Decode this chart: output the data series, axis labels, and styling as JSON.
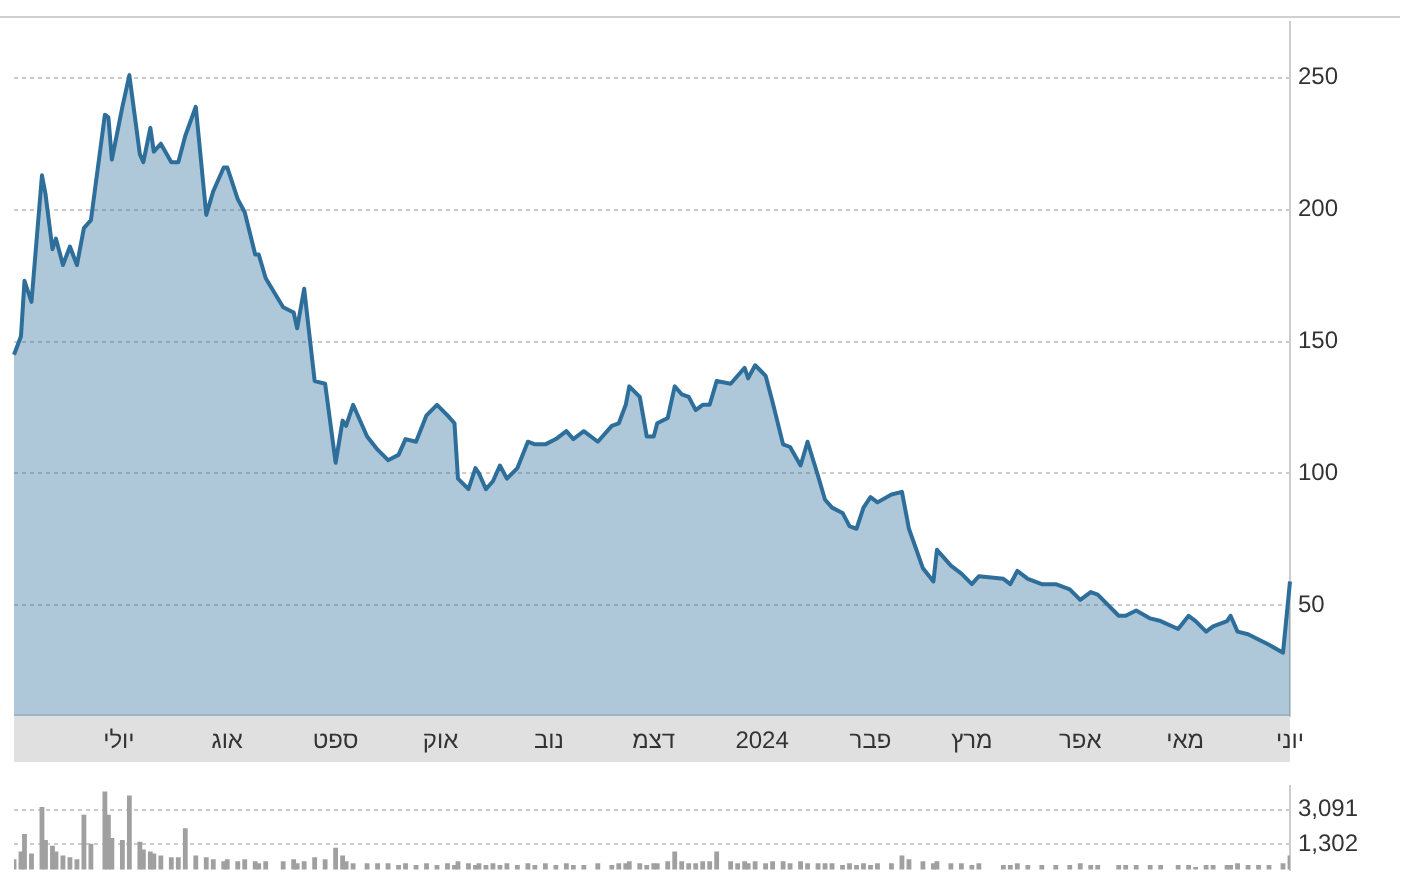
{
  "chart_data": [
    {
      "type": "area",
      "legend": false,
      "marker": "none",
      "grid": "y",
      "categories": [
        null,
        null,
        null,
        null,
        null,
        null,
        null,
        null,
        null,
        null,
        null,
        null,
        null,
        null,
        null,
        null,
        null,
        null,
        null,
        null,
        null,
        null,
        null,
        null,
        null,
        null,
        null,
        null,
        null,
        null,
        "יולי",
        null,
        null,
        null,
        null,
        null,
        null,
        null,
        null,
        null,
        null,
        null,
        null,
        null,
        null,
        null,
        null,
        null,
        null,
        null,
        null,
        null,
        null,
        null,
        null,
        null,
        null,
        null,
        null,
        null,
        null,
        "אוג",
        null,
        null,
        null,
        null,
        null,
        null,
        null,
        null,
        null,
        null,
        null,
        null,
        null,
        null,
        null,
        null,
        null,
        null,
        null,
        null,
        null,
        null,
        null,
        null,
        null,
        null,
        null,
        null,
        null,
        null,
        "ספט",
        null,
        null,
        null,
        null,
        null,
        null,
        null,
        null,
        null,
        null,
        null,
        null,
        null,
        null,
        null,
        null,
        null,
        null,
        null,
        null,
        null,
        null,
        null,
        null,
        null,
        null,
        null,
        null,
        null,
        "אוק",
        null,
        null,
        null,
        null,
        null,
        null,
        null,
        null,
        null,
        null,
        null,
        null,
        null,
        null,
        null,
        null,
        null,
        null,
        null,
        null,
        null,
        null,
        null,
        null,
        null,
        null,
        null,
        null,
        null,
        null,
        "נוב",
        null,
        null,
        null,
        null,
        null,
        null,
        null,
        null,
        null,
        null,
        null,
        null,
        null,
        null,
        null,
        null,
        null,
        null,
        null,
        null,
        null,
        null,
        null,
        null,
        null,
        null,
        null,
        null,
        null,
        "דצמ",
        null,
        null,
        null,
        null,
        null,
        null,
        null,
        null,
        null,
        null,
        null,
        null,
        null,
        null,
        null,
        null,
        null,
        null,
        null,
        null,
        null,
        null,
        null,
        null,
        null,
        null,
        null,
        null,
        null,
        null,
        "2024",
        null,
        null,
        null,
        null,
        null,
        null,
        null,
        null,
        null,
        null,
        null,
        null,
        null,
        null,
        null,
        null,
        null,
        null,
        null,
        null,
        null,
        null,
        null,
        null,
        null,
        null,
        null,
        null,
        null,
        null,
        "פבר",
        null,
        null,
        null,
        null,
        null,
        null,
        null,
        null,
        null,
        null,
        null,
        null,
        null,
        null,
        null,
        null,
        null,
        null,
        null,
        null,
        null,
        null,
        null,
        null,
        null,
        null,
        null,
        null,
        "מרץ",
        null,
        null,
        null,
        null,
        null,
        null,
        null,
        null,
        null,
        null,
        null,
        null,
        null,
        null,
        null,
        null,
        null,
        null,
        null,
        null,
        null,
        null,
        null,
        null,
        null,
        null,
        null,
        null,
        null,
        null,
        "אפר",
        null,
        null,
        null,
        null,
        null,
        null,
        null,
        null,
        null,
        null,
        null,
        null,
        null,
        null,
        null,
        null,
        null,
        null,
        null,
        null,
        null,
        null,
        null,
        null,
        null,
        null,
        null,
        null,
        null,
        "מאי",
        null,
        null,
        null,
        null,
        null,
        null,
        null,
        null,
        null,
        null,
        null,
        null,
        null,
        null,
        null,
        null,
        null,
        null,
        null,
        null,
        null,
        null,
        null,
        null,
        null,
        null,
        null,
        null,
        null,
        "יוני"
      ],
      "series": [
        {
          "color": "#2e6e9a",
          "values": [
            145,
            null,
            152,
            173,
            null,
            165,
            null,
            null,
            213,
            206,
            null,
            185,
            189,
            null,
            179,
            null,
            186,
            null,
            179,
            null,
            193,
            null,
            196,
            null,
            null,
            null,
            236,
            235,
            219,
            null,
            null,
            239,
            null,
            251,
            null,
            null,
            221,
            218,
            null,
            231,
            222,
            null,
            225,
            null,
            null,
            218,
            null,
            218,
            null,
            228,
            null,
            null,
            239,
            null,
            null,
            198,
            null,
            207,
            null,
            null,
            216,
            216,
            null,
            null,
            204,
            null,
            199,
            null,
            null,
            183,
            183,
            null,
            174,
            null,
            null,
            null,
            null,
            163,
            null,
            null,
            161,
            155,
            null,
            170,
            null,
            null,
            135,
            null,
            null,
            134,
            null,
            null,
            104,
            null,
            120,
            118,
            null,
            126,
            null,
            null,
            null,
            114,
            null,
            null,
            109,
            null,
            null,
            105,
            null,
            null,
            107,
            null,
            113,
            null,
            null,
            112,
            null,
            null,
            122,
            null,
            null,
            126,
            null,
            null,
            122,
            null,
            119,
            98,
            null,
            null,
            94,
            null,
            102,
            100,
            null,
            94,
            null,
            97,
            null,
            103,
            null,
            98,
            null,
            null,
            102,
            null,
            null,
            112,
            null,
            111,
            null,
            null,
            111,
            null,
            null,
            113,
            null,
            null,
            116,
            null,
            113,
            null,
            null,
            116,
            null,
            null,
            null,
            112,
            null,
            null,
            null,
            118,
            null,
            119,
            null,
            126,
            133,
            null,
            null,
            129,
            null,
            114,
            null,
            114,
            119,
            null,
            null,
            121,
            null,
            133,
            null,
            130,
            null,
            129,
            null,
            124,
            null,
            126,
            null,
            126,
            null,
            135,
            null,
            null,
            null,
            134,
            null,
            137,
            null,
            140,
            136,
            null,
            141,
            null,
            null,
            137,
            null,
            127,
            null,
            null,
            111,
            null,
            110,
            null,
            null,
            103,
            null,
            112,
            null,
            null,
            99,
            null,
            90,
            null,
            87,
            null,
            null,
            85,
            null,
            80,
            null,
            79,
            null,
            87,
            null,
            91,
            null,
            89,
            null,
            null,
            null,
            92,
            null,
            null,
            93,
            null,
            79,
            null,
            null,
            null,
            64,
            null,
            null,
            59,
            71,
            null,
            null,
            null,
            65,
            null,
            null,
            62,
            null,
            null,
            58,
            null,
            61,
            null,
            null,
            null,
            null,
            null,
            null,
            60,
            null,
            58,
            null,
            63,
            null,
            null,
            60,
            null,
            null,
            null,
            58,
            null,
            null,
            null,
            58,
            null,
            null,
            null,
            56,
            null,
            null,
            52,
            null,
            null,
            55,
            null,
            54,
            null,
            null,
            null,
            null,
            null,
            46,
            null,
            46,
            null,
            null,
            48,
            null,
            null,
            null,
            45,
            null,
            null,
            44,
            null,
            null,
            null,
            null,
            41,
            null,
            null,
            46,
            null,
            44,
            null,
            null,
            40,
            null,
            42,
            null,
            null,
            null,
            44,
            46,
            null,
            40,
            null,
            null,
            39,
            null,
            null,
            37,
            null,
            null,
            35,
            null,
            null,
            null,
            32,
            null,
            59
          ]
        }
      ],
      "ylim": [
        8,
        271
      ],
      "yticks": [
        50,
        100,
        150,
        200,
        250
      ]
    },
    {
      "type": "bar",
      "legend": false,
      "grid": "y",
      "tick_labels": "y",
      "categories": [
        null,
        null,
        null,
        null,
        null,
        null,
        null,
        null,
        null,
        null,
        null,
        null,
        null,
        null,
        null,
        null,
        null,
        null,
        null,
        null,
        null,
        null,
        null,
        null,
        null,
        null,
        null,
        null,
        null,
        null,
        null,
        null,
        null,
        null,
        null,
        null,
        null,
        null,
        null,
        null,
        null,
        null,
        null,
        null,
        null,
        null,
        null,
        null,
        null,
        null,
        null,
        null,
        null,
        null,
        null,
        null,
        null,
        null,
        null,
        null,
        null,
        null,
        null,
        null,
        null,
        null,
        null,
        null,
        null,
        null,
        null,
        null,
        null,
        null,
        null,
        null,
        null,
        null,
        null,
        null,
        null,
        null,
        null,
        null,
        null,
        null,
        null,
        null,
        null,
        null,
        null,
        null,
        null,
        null,
        null,
        null,
        null,
        null,
        null,
        null,
        null,
        null,
        null,
        null,
        null,
        null,
        null,
        null,
        null,
        null,
        null,
        null,
        null,
        null,
        null,
        null,
        null,
        null,
        null,
        null,
        null,
        null,
        null,
        null,
        null,
        null,
        null,
        null,
        null,
        null,
        null,
        null,
        null,
        null,
        null,
        null,
        null,
        null,
        null,
        null,
        null,
        null,
        null,
        null,
        null,
        null,
        null,
        null,
        null,
        null,
        null,
        null,
        null,
        null,
        null,
        null,
        null,
        null,
        null,
        null,
        null,
        null,
        null,
        null,
        null,
        null,
        null,
        null,
        null,
        null,
        null,
        null,
        null,
        null,
        null,
        null,
        null,
        null,
        null,
        null,
        null,
        null,
        null,
        null,
        null,
        null,
        null,
        null,
        null,
        null,
        null,
        null,
        null,
        null,
        null,
        null,
        null,
        null,
        null,
        null,
        null,
        null,
        null,
        null,
        null,
        null,
        null,
        null,
        null,
        null,
        null,
        null,
        null,
        null,
        null,
        null,
        null,
        null,
        null,
        null,
        null,
        null,
        null,
        null,
        null,
        null,
        null,
        null,
        null,
        null,
        null,
        null,
        null,
        null,
        null,
        null,
        null,
        null,
        null,
        null,
        null,
        null,
        null,
        null,
        null,
        null,
        null,
        null,
        null,
        null,
        null,
        null,
        null,
        null,
        null,
        null,
        null,
        null,
        null,
        null,
        null,
        null,
        null,
        null,
        null,
        null,
        null,
        null,
        null,
        null,
        null,
        null,
        null,
        null,
        null,
        null,
        null,
        null,
        null,
        null,
        null,
        null,
        null,
        null,
        null,
        null,
        null,
        null,
        null,
        null,
        null,
        null,
        null,
        null,
        null,
        null,
        null,
        null,
        null,
        null,
        null,
        null,
        null,
        null,
        null,
        null,
        null,
        null,
        null,
        null,
        null,
        null,
        null,
        null,
        null,
        null,
        null,
        null,
        null,
        null,
        null,
        null,
        null,
        null,
        null,
        null,
        null,
        null,
        null,
        null,
        null,
        null,
        null,
        null,
        null,
        null,
        null,
        null,
        null,
        null,
        null,
        null,
        null,
        null,
        null,
        null,
        null,
        null,
        null,
        null,
        null,
        null,
        null,
        null,
        null,
        null,
        null,
        null,
        null,
        null,
        null,
        null,
        null,
        null,
        null,
        null
      ],
      "series": [
        {
          "color": "#a0a0a0",
          "values": [
            500,
            null,
            900,
            1800,
            null,
            800,
            null,
            null,
            3200,
            1500,
            null,
            1200,
            900,
            null,
            700,
            null,
            600,
            null,
            500,
            null,
            2800,
            null,
            1300,
            null,
            null,
            null,
            4000,
            2800,
            1600,
            null,
            null,
            1500,
            null,
            3800,
            null,
            null,
            1400,
            1000,
            null,
            900,
            800,
            null,
            700,
            null,
            null,
            600,
            null,
            600,
            null,
            2100,
            null,
            null,
            700,
            null,
            null,
            600,
            null,
            500,
            null,
            null,
            400,
            500,
            null,
            null,
            400,
            null,
            500,
            null,
            null,
            400,
            300,
            null,
            400,
            null,
            null,
            null,
            null,
            400,
            null,
            null,
            500,
            300,
            null,
            400,
            null,
            null,
            600,
            null,
            null,
            500,
            null,
            null,
            1100,
            null,
            700,
            400,
            null,
            300,
            null,
            null,
            null,
            300,
            null,
            null,
            300,
            null,
            null,
            300,
            null,
            null,
            200,
            null,
            300,
            null,
            null,
            200,
            null,
            null,
            300,
            null,
            null,
            200,
            null,
            null,
            300,
            null,
            200,
            400,
            null,
            null,
            300,
            null,
            200,
            300,
            null,
            200,
            null,
            300,
            null,
            200,
            null,
            300,
            null,
            null,
            200,
            null,
            null,
            300,
            null,
            200,
            null,
            null,
            300,
            null,
            null,
            200,
            null,
            null,
            300,
            null,
            200,
            null,
            null,
            200,
            null,
            null,
            null,
            300,
            null,
            null,
            null,
            200,
            null,
            300,
            null,
            300,
            400,
            null,
            null,
            300,
            null,
            200,
            null,
            300,
            300,
            null,
            null,
            400,
            null,
            900,
            null,
            400,
            null,
            300,
            null,
            300,
            null,
            400,
            null,
            400,
            null,
            900,
            null,
            null,
            null,
            400,
            null,
            300,
            null,
            400,
            300,
            null,
            400,
            null,
            null,
            300,
            null,
            400,
            null,
            null,
            400,
            null,
            300,
            null,
            null,
            400,
            null,
            300,
            null,
            null,
            300,
            null,
            300,
            null,
            300,
            null,
            null,
            200,
            null,
            300,
            null,
            200,
            null,
            300,
            null,
            200,
            null,
            300,
            null,
            null,
            null,
            300,
            null,
            null,
            700,
            null,
            500,
            null,
            null,
            null,
            400,
            null,
            null,
            300,
            400,
            null,
            null,
            null,
            300,
            null,
            null,
            300,
            null,
            null,
            200,
            null,
            300,
            null,
            null,
            null,
            null,
            null,
            null,
            200,
            null,
            200,
            null,
            300,
            null,
            null,
            200,
            null,
            null,
            null,
            200,
            null,
            null,
            null,
            200,
            null,
            null,
            null,
            200,
            null,
            null,
            300,
            null,
            null,
            200,
            null,
            200,
            null,
            null,
            null,
            null,
            null,
            200,
            null,
            200,
            null,
            null,
            200,
            null,
            null,
            null,
            200,
            null,
            null,
            200,
            null,
            null,
            null,
            null,
            200,
            null,
            null,
            200,
            null,
            100,
            null,
            null,
            200,
            null,
            200,
            null,
            null,
            null,
            200,
            200,
            null,
            300,
            null,
            null,
            200,
            null,
            null,
            200,
            null,
            null,
            200,
            null,
            null,
            null,
            300,
            null,
            700
          ]
        }
      ],
      "ylim": [
        0,
        4300
      ],
      "yticks": [
        {
          "value": 1302,
          "label": "1,302"
        },
        {
          "value": 3091,
          "label": "3,091"
        }
      ]
    }
  ]
}
